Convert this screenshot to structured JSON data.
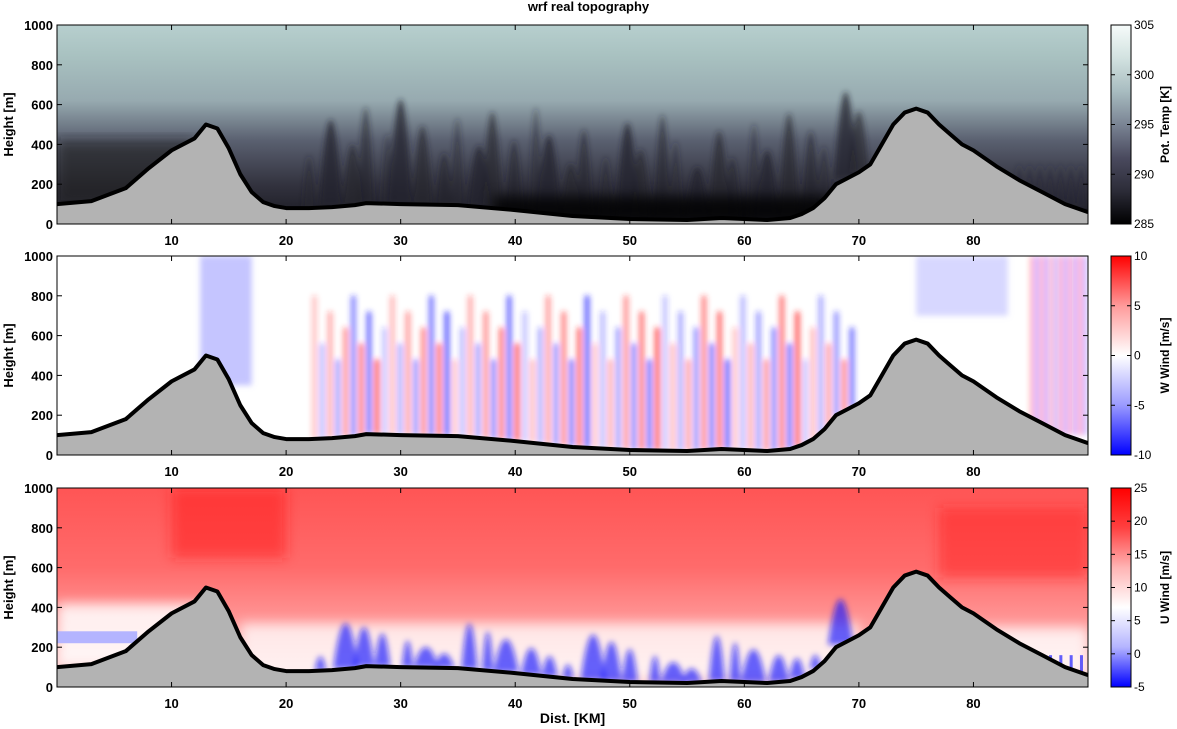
{
  "title": "wrf real topography",
  "xlabel": "Dist. [KM]",
  "chart_data": [
    {
      "type": "heatmap",
      "ylabel": "Height [m]",
      "xlim": [
        0,
        90
      ],
      "ylim": [
        0,
        1000
      ],
      "xticks": [
        10,
        20,
        30,
        40,
        50,
        60,
        70,
        80
      ],
      "yticks": [
        0,
        200,
        400,
        600,
        800,
        1000
      ],
      "colorbar": {
        "label": "Pot. Temp [K]",
        "range": [
          285,
          305
        ],
        "ticks": [
          285,
          290,
          295,
          300,
          305
        ],
        "colors": [
          "#000000",
          "#2c2c38",
          "#4a4a5e",
          "#7a8494",
          "#a8bcc0",
          "#d2e2e0",
          "#f6fbfa"
        ]
      }
    },
    {
      "type": "heatmap",
      "ylabel": "Height [m]",
      "xlim": [
        0,
        90
      ],
      "ylim": [
        0,
        1000
      ],
      "xticks": [
        10,
        20,
        30,
        40,
        50,
        60,
        70,
        80
      ],
      "yticks": [
        0,
        200,
        400,
        600,
        800,
        1000
      ],
      "colorbar": {
        "label": "W Wind [m/s]",
        "range": [
          -10,
          10
        ],
        "ticks": [
          -10,
          -5,
          0,
          5,
          10
        ],
        "colors": [
          "#0000ff",
          "#9a9aff",
          "#ffffff",
          "#ff9a9a",
          "#ff0000"
        ]
      }
    },
    {
      "type": "heatmap",
      "ylabel": "Height [m]",
      "xlim": [
        0,
        90
      ],
      "ylim": [
        0,
        1000
      ],
      "xticks": [
        10,
        20,
        30,
        40,
        50,
        60,
        70,
        80
      ],
      "yticks": [
        0,
        200,
        400,
        600,
        800,
        1000
      ],
      "colorbar": {
        "label": "U Wind [m/s]",
        "range": [
          -5,
          25
        ],
        "ticks": [
          -5,
          0,
          5,
          10,
          15,
          20,
          25
        ],
        "colors": [
          "#0000ff",
          "#b4b4ff",
          "#ffffff",
          "#ffb4b4",
          "#ff4040",
          "#ff0000"
        ]
      }
    }
  ],
  "terrain": {
    "x": [
      0,
      3,
      6,
      8,
      10,
      12,
      13,
      14,
      15,
      16,
      17,
      18,
      19,
      20,
      22,
      24,
      26,
      27,
      30,
      35,
      40,
      45,
      50,
      55,
      58,
      60,
      62,
      64,
      65,
      66,
      67,
      68,
      69,
      70,
      71,
      72,
      73,
      74,
      75,
      76,
      77,
      78,
      79,
      80,
      82,
      84,
      86,
      88,
      90
    ],
    "y": [
      100,
      115,
      180,
      280,
      370,
      430,
      500,
      480,
      380,
      250,
      160,
      110,
      90,
      80,
      80,
      85,
      95,
      105,
      100,
      95,
      70,
      40,
      25,
      20,
      30,
      25,
      20,
      30,
      50,
      80,
      130,
      200,
      230,
      260,
      300,
      400,
      500,
      560,
      580,
      560,
      500,
      450,
      400,
      370,
      290,
      220,
      160,
      100,
      60
    ],
    "fill": "#b3b3b3"
  }
}
